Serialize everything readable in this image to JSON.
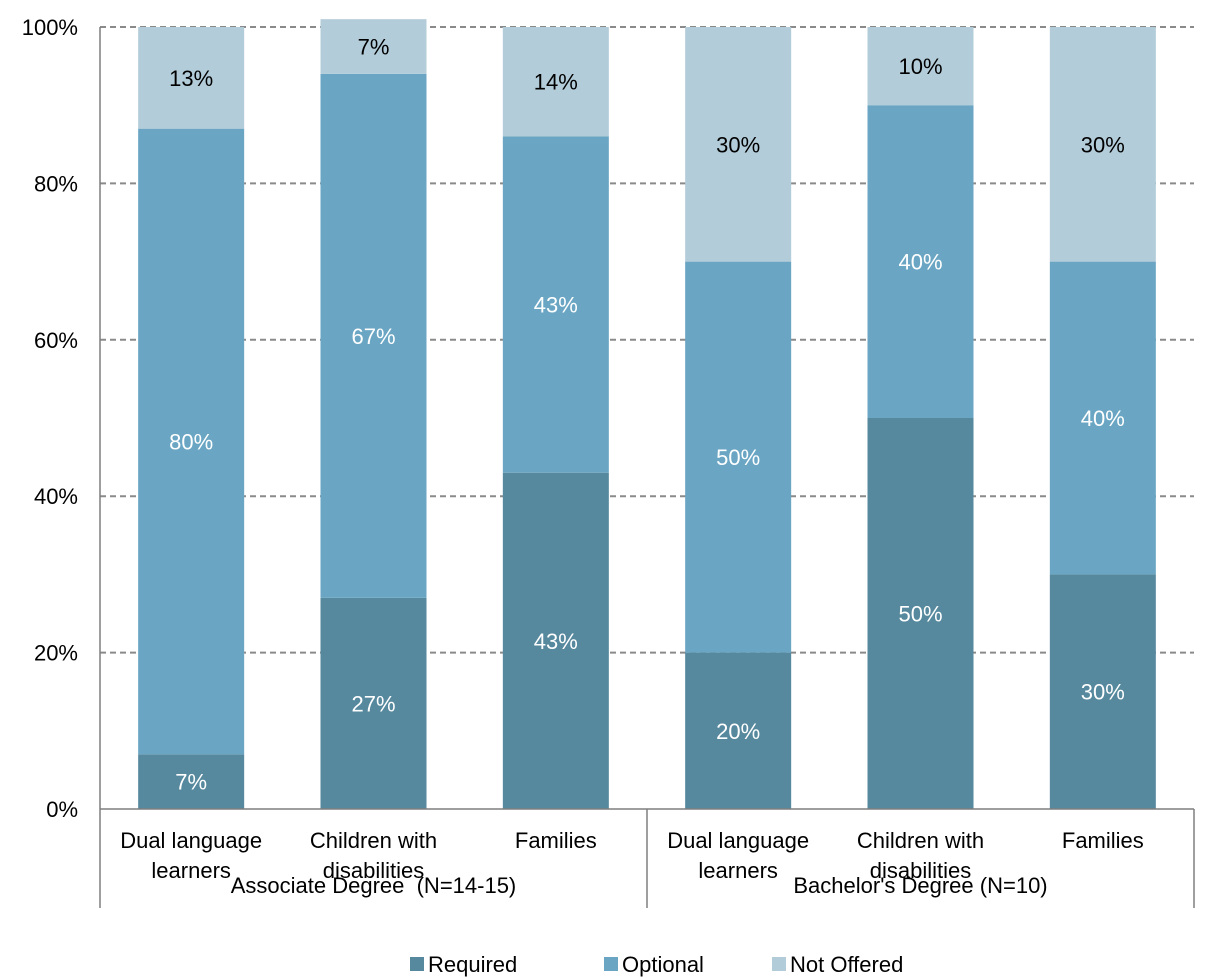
{
  "chart_data": {
    "type": "bar",
    "stacked": true,
    "groups": [
      {
        "label": "Associate Degree  (N=14-15)",
        "categories": [
          0,
          1,
          2
        ]
      },
      {
        "label": "Bachelor's Degree (N=10)",
        "categories": [
          3,
          4,
          5
        ]
      }
    ],
    "categories": [
      [
        "Dual language",
        "learners"
      ],
      [
        "Children with",
        "disabilities"
      ],
      [
        "Families"
      ],
      [
        "Dual language",
        "learners"
      ],
      [
        "Children with",
        "disabilities"
      ],
      [
        "Families"
      ]
    ],
    "series": [
      {
        "name": "Required",
        "color": "#56889e",
        "label_color": "#ffffff",
        "values": [
          7,
          27,
          43,
          20,
          50,
          30
        ]
      },
      {
        "name": "Optional",
        "color": "#6aa6c3",
        "label_color": "#ffffff",
        "values": [
          80,
          67,
          43,
          50,
          40,
          40
        ]
      },
      {
        "name": "Not Offered",
        "color": "#b3ccd9",
        "label_color": "#000000",
        "values": [
          13,
          7,
          14,
          30,
          10,
          30
        ]
      }
    ],
    "data_labels": [
      [
        "7%",
        "27%",
        "43%",
        "20%",
        "50%",
        "30%"
      ],
      [
        "80%",
        "67%",
        "43%",
        "50%",
        "40%",
        "40%"
      ],
      [
        "13%",
        "7%",
        "14%",
        "30%",
        "10%",
        "30%"
      ]
    ],
    "y_ticks": [
      "0%",
      "20%",
      "40%",
      "60%",
      "80%",
      "100%"
    ],
    "y_tick_values": [
      0,
      20,
      40,
      60,
      80,
      100
    ],
    "ylim": [
      0,
      100
    ],
    "grid": "dashed-horizontal",
    "legend_position": "bottom"
  }
}
